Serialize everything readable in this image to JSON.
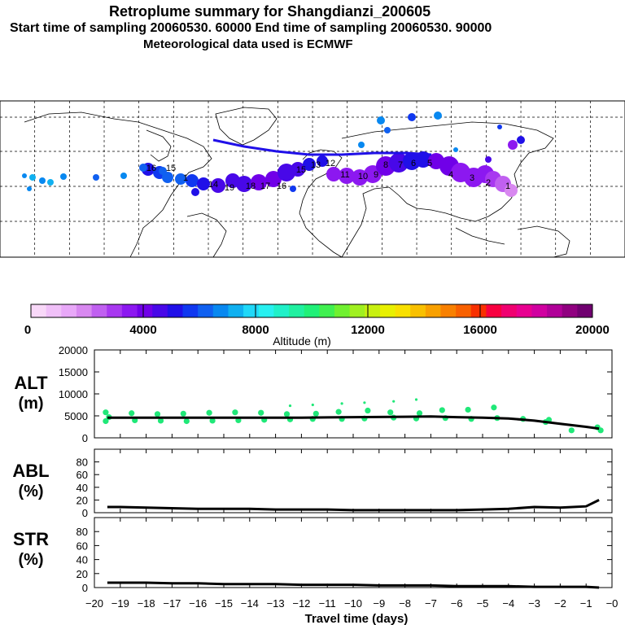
{
  "titles": {
    "main": "Retroplume summary for Shangdianzi_200605",
    "sampling": "Start time of sampling 20060530. 60000     End time of sampling 20060530. 90000",
    "met": "Meteorological data used is ECMWF"
  },
  "colors": {
    "palette": [
      "#f8d8f8",
      "#f0c0f8",
      "#e8a8f8",
      "#d888f0",
      "#c060f0",
      "#a838f0",
      "#8c18f0",
      "#7000e8",
      "#4808e8",
      "#2010e8",
      "#1038f0",
      "#1060f0",
      "#0888f0",
      "#10b0f0",
      "#20d8f8",
      "#28f0f0",
      "#20f0c8",
      "#20f0a0",
      "#20f078",
      "#40f050",
      "#70f030",
      "#a0f020",
      "#c8f010",
      "#e8f000",
      "#f8e000",
      "#f8c000",
      "#f8a000",
      "#f88000",
      "#f86000",
      "#f83000",
      "#f80040",
      "#f00070",
      "#e80090",
      "#d000a0",
      "#b00098",
      "#900080",
      "#700070"
    ],
    "plume_points": "#20e878",
    "lines": "#000000"
  },
  "colorbar": {
    "ticks": [
      "0",
      "4000",
      "8000",
      "12000",
      "16000",
      "20000"
    ],
    "label": "Altitude (m)",
    "vmin": 0,
    "vmax": 20000
  },
  "map": {
    "labels": [
      "16",
      "15",
      "1",
      "14",
      "19",
      "18",
      "17",
      "16",
      "15",
      "13",
      "12",
      "11",
      "10",
      "9",
      "8",
      "7",
      "6",
      "5",
      "4",
      "3",
      "2",
      "1"
    ]
  },
  "chart_data": [
    {
      "type": "line",
      "name": "ALT",
      "ylabel": "ALT\n(m)",
      "ylabel_lines": [
        "ALT",
        "(m)"
      ],
      "ylim": [
        0,
        20000
      ],
      "yticks": [
        "0",
        "5000",
        "10000",
        "15000",
        "20000"
      ],
      "yticks_v": [
        0,
        5000,
        10000,
        15000,
        20000
      ],
      "x": [
        -19.5,
        -19,
        -18,
        -17,
        -16,
        -15,
        -14,
        -13,
        -12,
        -11,
        -10,
        -9,
        -8,
        -7,
        -6,
        -5,
        -4,
        -3,
        -2,
        -1,
        -0.5
      ],
      "values": [
        4600,
        4600,
        4600,
        4600,
        4600,
        4600,
        4600,
        4600,
        4600,
        4650,
        4700,
        4750,
        4800,
        4850,
        4700,
        4600,
        4400,
        3900,
        3200,
        2500,
        2100
      ],
      "scatter": {
        "x": [
          -19.5,
          -19.5,
          -19.5,
          -18.5,
          -18.5,
          -17.5,
          -17.5,
          -16.5,
          -16.5,
          -15.5,
          -15.5,
          -14.5,
          -14.5,
          -13.5,
          -13.5,
          -12.5,
          -12.5,
          -12.5,
          -11.5,
          -11.5,
          -11.5,
          -10.5,
          -10.5,
          -10.5,
          -9.5,
          -9.5,
          -9.5,
          -8.5,
          -8.5,
          -8.5,
          -7.5,
          -7.5,
          -7.5,
          -6.5,
          -6.5,
          -5.5,
          -5.5,
          -4.5,
          -4.5,
          -3.5,
          -2.5,
          -2.5,
          -1.5,
          -0.5,
          -0.5
        ],
        "y": [
          3800,
          4700,
          5800,
          4000,
          5600,
          3900,
          5400,
          3800,
          5500,
          3900,
          5700,
          4000,
          5800,
          4100,
          5700,
          4200,
          5400,
          7300,
          4300,
          5500,
          7500,
          4300,
          5900,
          7800,
          4400,
          6200,
          8000,
          4600,
          5800,
          8300,
          4400,
          5600,
          8700,
          4500,
          6300,
          4300,
          6400,
          4500,
          6900,
          4300,
          3600,
          4100,
          1700,
          1700,
          2400
        ]
      }
    },
    {
      "type": "line",
      "name": "ABL",
      "ylabel": "ABL\n(%)",
      "ylabel_lines": [
        "ABL",
        "(%)"
      ],
      "ylim": [
        0,
        100
      ],
      "yticks": [
        "0",
        "20",
        "40",
        "60",
        "80"
      ],
      "yticks_v": [
        0,
        20,
        40,
        60,
        80
      ],
      "x": [
        -19.5,
        -19,
        -18,
        -17,
        -16,
        -15,
        -14,
        -13,
        -12,
        -11,
        -10,
        -9,
        -8,
        -7,
        -6,
        -5,
        -4,
        -3,
        -2,
        -1,
        -0.5
      ],
      "values": [
        9,
        9,
        8,
        7,
        6,
        6,
        6,
        5,
        5,
        5,
        4,
        4,
        4,
        4,
        4,
        5,
        6,
        9,
        8,
        10,
        20
      ]
    },
    {
      "type": "line",
      "name": "STR",
      "ylabel": "STR\n(%)",
      "ylabel_lines": [
        "STR",
        "(%)"
      ],
      "ylim": [
        0,
        100
      ],
      "yticks": [
        "0",
        "20",
        "40",
        "60",
        "80"
      ],
      "yticks_v": [
        0,
        20,
        40,
        60,
        80
      ],
      "x": [
        -19.5,
        -19,
        -18,
        -17,
        -16,
        -15,
        -14,
        -13,
        -12,
        -11,
        -10,
        -9,
        -8,
        -7,
        -6,
        -5,
        -4,
        -3,
        -2,
        -1,
        -0.5
      ],
      "values": [
        7,
        7,
        7,
        6,
        6,
        5,
        5,
        5,
        4,
        4,
        4,
        3,
        3,
        3,
        2,
        2,
        2,
        1,
        1,
        1,
        0
      ]
    }
  ],
  "xaxis": {
    "label": "Travel time (days)",
    "ticks": [
      "−20",
      "−19",
      "−18",
      "−17",
      "−16",
      "−15",
      "−14",
      "−13",
      "−12",
      "−11",
      "−10",
      "−9",
      "−8",
      "−7",
      "−6",
      "−5",
      "−4",
      "−3",
      "−2",
      "−1",
      "−0"
    ],
    "tick_values": [
      -20,
      -19,
      -18,
      -17,
      -16,
      -15,
      -14,
      -13,
      -12,
      -11,
      -10,
      -9,
      -8,
      -7,
      -6,
      -5,
      -4,
      -3,
      -2,
      -1,
      0
    ],
    "xlim": [
      -20,
      0
    ]
  }
}
